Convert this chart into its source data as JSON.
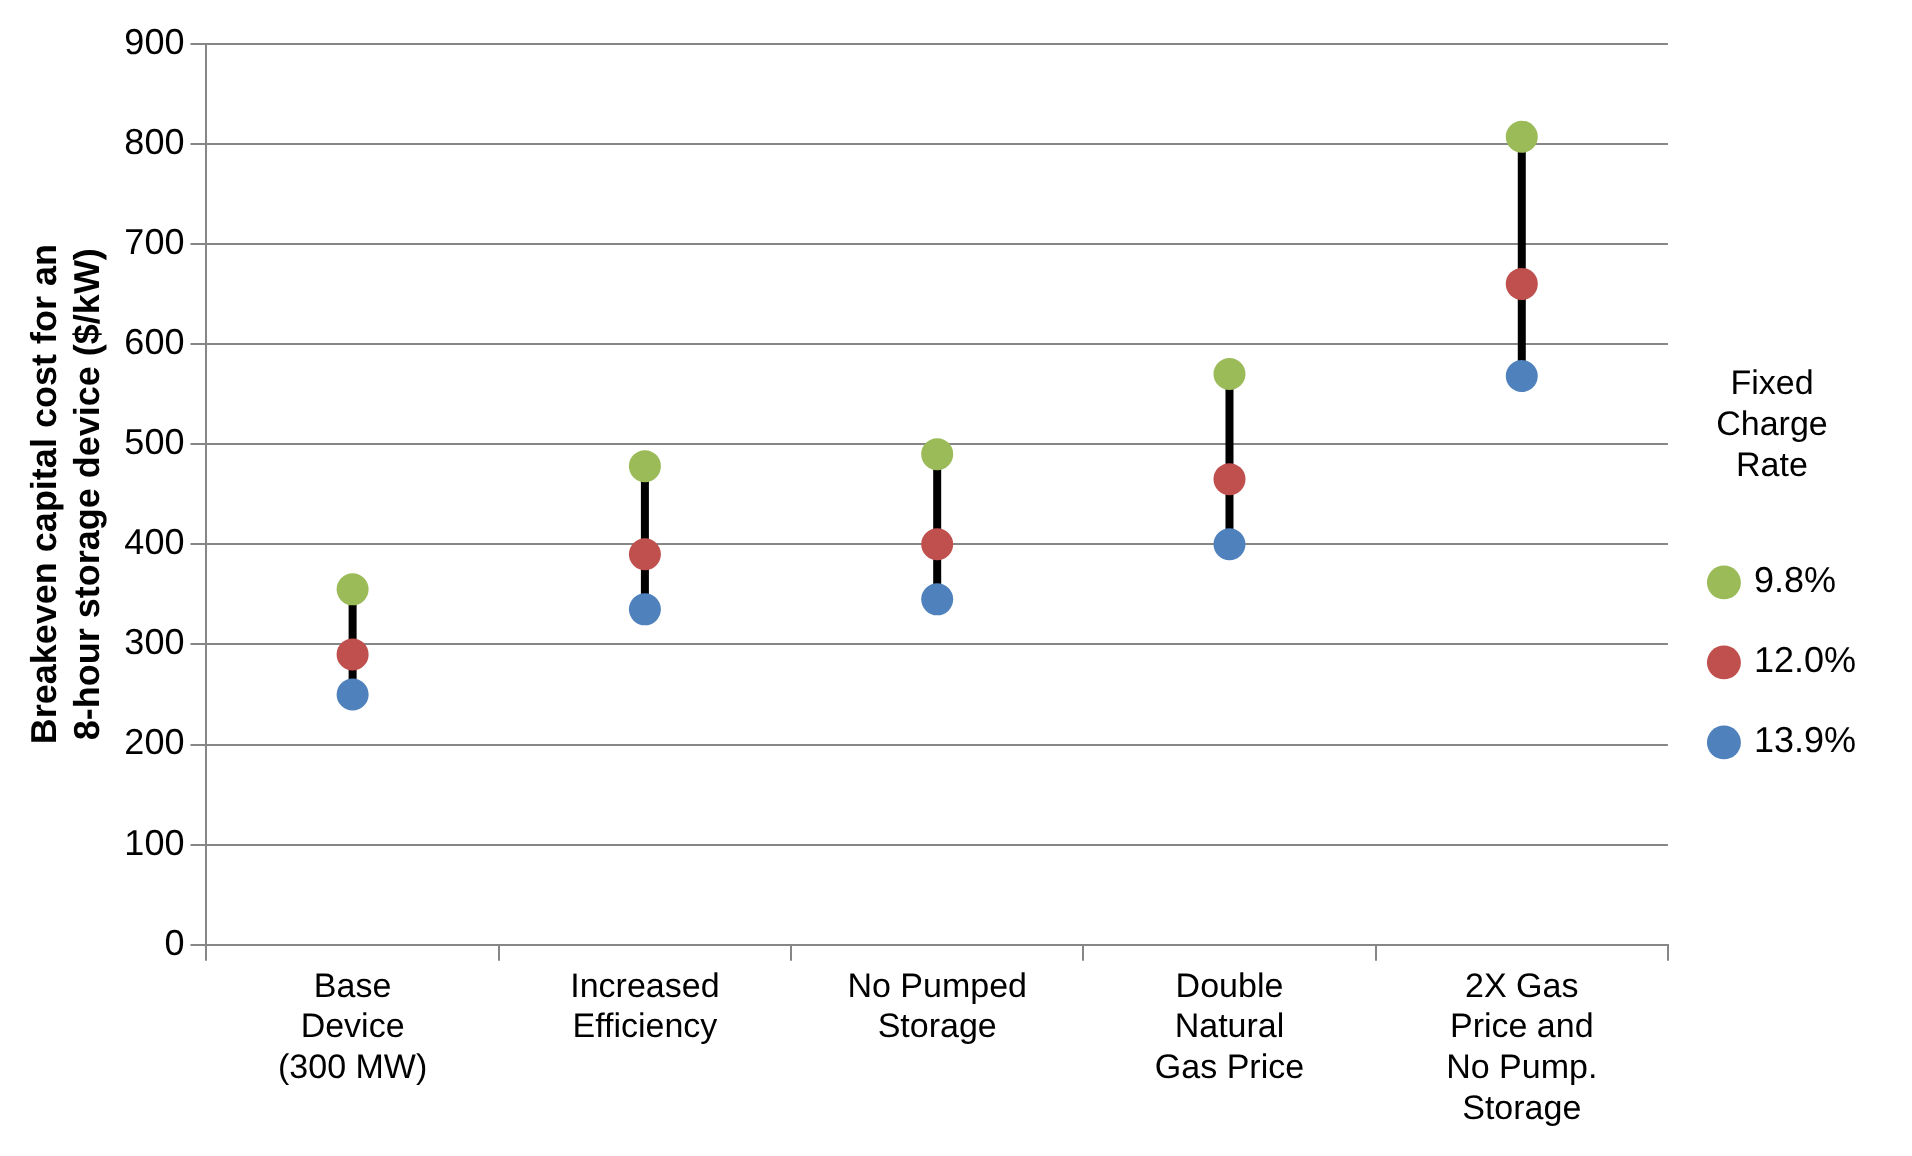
{
  "chart_data": {
    "type": "scatter",
    "ylabel": "Breakeven capital cost for an 8-hour storage device ($/kW)",
    "legend_title": "Fixed Charge Rate",
    "categories": [
      "Base Device (300 MW)",
      "Increased Efficiency",
      "No Pumped Storage",
      "Double Natural Gas Price",
      "2X Gas Price and No Pump. Storage"
    ],
    "series": [
      {
        "name": "9.8%",
        "color": "#9bbb59",
        "values": [
          355,
          478,
          490,
          570,
          807
        ]
      },
      {
        "name": "12.0%",
        "color": "#c0504d",
        "values": [
          290,
          390,
          400,
          465,
          660
        ]
      },
      {
        "name": "13.9%",
        "color": "#4f81bd",
        "values": [
          250,
          335,
          345,
          400,
          568
        ]
      }
    ],
    "ylim": [
      0,
      900
    ],
    "yticks": [
      0,
      100,
      200,
      300,
      400,
      500,
      600,
      700,
      800,
      900
    ],
    "grid": "y",
    "legend": "right",
    "marker": "circle"
  }
}
